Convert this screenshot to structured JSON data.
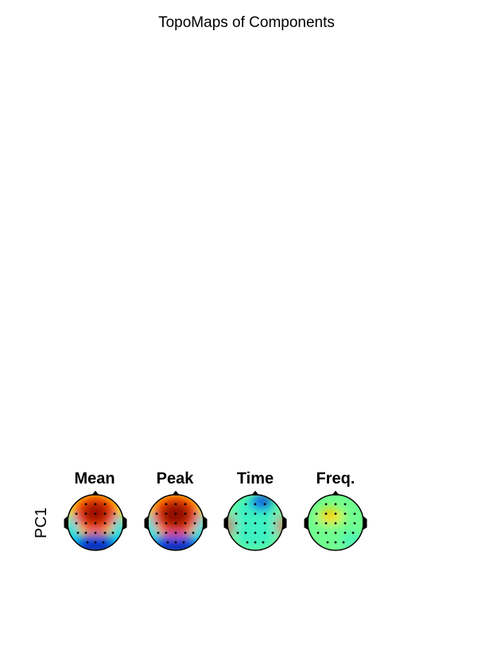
{
  "figure": {
    "title": "TopoMaps of Components"
  },
  "chart_data": {
    "type": "heatmap",
    "title": "TopoMaps of Components",
    "rows": [
      "PC1"
    ],
    "columns": [
      "Mean",
      "Peak",
      "Time",
      "Freq."
    ],
    "colormap": [
      "#00008f",
      "#0050ff",
      "#00dfff",
      "#70ff8f",
      "#ffef00",
      "#ff4000",
      "#800000"
    ],
    "electrodes_visible": true,
    "maps": [
      {
        "row": "PC1",
        "column": "Mean",
        "pattern": "frontal-central positive peak, temporal-posterior negative",
        "max_level": "dark-red",
        "min_level": "blue"
      },
      {
        "row": "PC1",
        "column": "Peak",
        "pattern": "frontal-central positive peak, temporal-posterior negative",
        "max_level": "dark-red",
        "min_level": "blue"
      },
      {
        "row": "PC1",
        "column": "Time",
        "pattern": "mostly neutral, temporal edges positive, frontal-right negative",
        "max_level": "red",
        "min_level": "blue"
      },
      {
        "row": "PC1",
        "column": "Freq.",
        "pattern": "mostly neutral with mild left-frontal positive",
        "max_level": "orange",
        "min_level": "green"
      }
    ]
  }
}
